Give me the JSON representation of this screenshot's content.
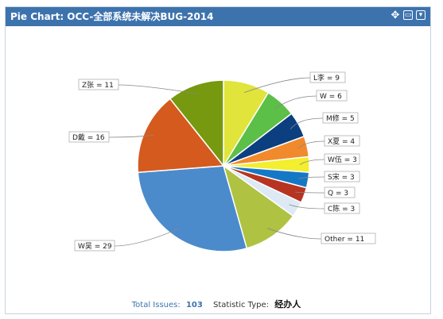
{
  "header": {
    "title": "Pie Chart: OCC-全部系统未解决BUG-2014",
    "icons": [
      "move-icon",
      "maximize-icon",
      "dropdown-icon"
    ]
  },
  "chart_data": {
    "type": "pie",
    "slices": [
      {
        "label": "L李 = 9",
        "value": 9,
        "color": "#e1e43a"
      },
      {
        "label": "W = 6",
        "value": 6,
        "color": "#5cbf47"
      },
      {
        "label": "M修 = 5",
        "value": 5,
        "color": "#0b3f80"
      },
      {
        "label": "X夏 = 4",
        "value": 4,
        "color": "#f08a2c"
      },
      {
        "label": "W伍 = 3",
        "value": 3,
        "color": "#f3ee2e"
      },
      {
        "label": "S宋 = 3",
        "value": 3,
        "color": "#1578c5"
      },
      {
        "label": "Q = 3",
        "value": 3,
        "color": "#b73420"
      },
      {
        "label": "C陈 = 3",
        "value": 3,
        "color": "#dde9f4"
      },
      {
        "label": "Other = 11",
        "value": 11,
        "color": "#b0c242"
      },
      {
        "label": "W吴 = 29",
        "value": 29,
        "color": "#4b8bcb"
      },
      {
        "label": "D戴 = 16",
        "value": 16,
        "color": "#d45a1e"
      },
      {
        "label": "Z张 = 11",
        "value": 11,
        "color": "#76990f"
      }
    ]
  },
  "footer": {
    "total_label": "Total Issues:",
    "total_value": "103",
    "stat_label": "Statistic Type:",
    "stat_value": "经办人"
  }
}
